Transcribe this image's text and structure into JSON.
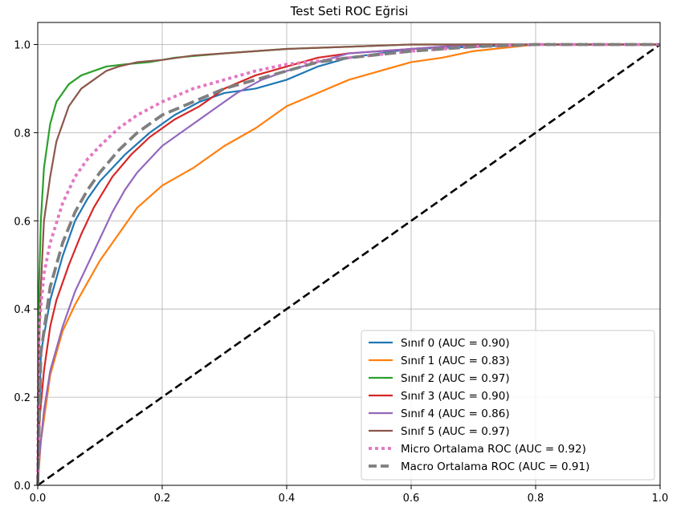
{
  "chart_data": {
    "type": "line",
    "title": "Test Seti ROC Eğrisi",
    "xlabel": "",
    "ylabel": "",
    "xlim": [
      0.0,
      1.0
    ],
    "ylim": [
      0.0,
      1.05
    ],
    "x_ticks": [
      0.0,
      0.2,
      0.4,
      0.6,
      0.8,
      1.0
    ],
    "x_tick_labels": [
      "0.0",
      "0.2",
      "0.4",
      "0.6",
      "0.8",
      "1.0"
    ],
    "y_ticks": [
      0.0,
      0.2,
      0.4,
      0.6,
      0.8,
      1.0
    ],
    "y_tick_labels": [
      "0.0",
      "0.2",
      "0.4",
      "0.6",
      "0.8",
      "1.0"
    ],
    "grid": true,
    "legend_position": "lower-right",
    "series": [
      {
        "name": "Sınıf 0 (AUC = 0.90)",
        "color": "#1f77b4",
        "style": "solid",
        "x": [
          0,
          0.005,
          0.02,
          0.04,
          0.06,
          0.08,
          0.1,
          0.14,
          0.18,
          0.22,
          0.26,
          0.3,
          0.35,
          0.4,
          0.45,
          0.5,
          0.55,
          0.6,
          0.7,
          0.8,
          0.9,
          1.0
        ],
        "y": [
          0,
          0.3,
          0.42,
          0.52,
          0.6,
          0.65,
          0.69,
          0.75,
          0.8,
          0.84,
          0.87,
          0.89,
          0.9,
          0.92,
          0.95,
          0.97,
          0.98,
          0.99,
          0.995,
          1.0,
          1.0,
          1.0
        ]
      },
      {
        "name": "Sınıf 1 (AUC = 0.83)",
        "color": "#ff7f0e",
        "style": "solid",
        "x": [
          0,
          0.005,
          0.02,
          0.04,
          0.06,
          0.08,
          0.1,
          0.13,
          0.16,
          0.2,
          0.25,
          0.3,
          0.35,
          0.4,
          0.45,
          0.5,
          0.55,
          0.6,
          0.65,
          0.7,
          0.8,
          0.9,
          1.0
        ],
        "y": [
          0,
          0.1,
          0.25,
          0.35,
          0.41,
          0.46,
          0.51,
          0.57,
          0.63,
          0.68,
          0.72,
          0.77,
          0.81,
          0.86,
          0.89,
          0.92,
          0.94,
          0.96,
          0.97,
          0.985,
          1.0,
          1.0,
          1.0
        ]
      },
      {
        "name": "Sınıf 2 (AUC = 0.97)",
        "color": "#2ca02c",
        "style": "solid",
        "x": [
          0,
          0.002,
          0.005,
          0.01,
          0.02,
          0.03,
          0.05,
          0.07,
          0.09,
          0.11,
          0.14,
          0.18,
          0.22,
          0.3,
          0.4,
          0.5,
          0.6,
          0.8,
          1.0
        ],
        "y": [
          0,
          0.45,
          0.6,
          0.72,
          0.82,
          0.87,
          0.91,
          0.93,
          0.94,
          0.95,
          0.955,
          0.96,
          0.97,
          0.98,
          0.99,
          0.995,
          1.0,
          1.0,
          1.0
        ]
      },
      {
        "name": "Sınıf 3 (AUC = 0.90)",
        "color": "#d62728",
        "style": "solid",
        "x": [
          0,
          0.003,
          0.01,
          0.02,
          0.03,
          0.05,
          0.07,
          0.09,
          0.12,
          0.15,
          0.18,
          0.22,
          0.26,
          0.3,
          0.35,
          0.4,
          0.45,
          0.5,
          0.6,
          0.7,
          0.8,
          1.0
        ],
        "y": [
          0,
          0.15,
          0.26,
          0.36,
          0.42,
          0.5,
          0.57,
          0.63,
          0.7,
          0.75,
          0.79,
          0.83,
          0.86,
          0.9,
          0.93,
          0.95,
          0.97,
          0.98,
          0.99,
          1.0,
          1.0,
          1.0
        ]
      },
      {
        "name": "Sınıf 4 (AUC = 0.86)",
        "color": "#9467bd",
        "style": "solid",
        "x": [
          0,
          0.003,
          0.01,
          0.02,
          0.04,
          0.06,
          0.08,
          0.1,
          0.12,
          0.14,
          0.16,
          0.18,
          0.2,
          0.24,
          0.28,
          0.32,
          0.36,
          0.4,
          0.45,
          0.5,
          0.6,
          0.7,
          0.8,
          1.0
        ],
        "y": [
          0,
          0.07,
          0.17,
          0.26,
          0.36,
          0.44,
          0.5,
          0.56,
          0.62,
          0.67,
          0.71,
          0.74,
          0.77,
          0.81,
          0.85,
          0.89,
          0.92,
          0.94,
          0.96,
          0.98,
          0.99,
          1.0,
          1.0,
          1.0
        ]
      },
      {
        "name": "Sınıf 5 (AUC = 0.97)",
        "color": "#8c564b",
        "style": "solid",
        "x": [
          0,
          0.002,
          0.005,
          0.01,
          0.02,
          0.03,
          0.05,
          0.07,
          0.09,
          0.11,
          0.13,
          0.16,
          0.2,
          0.25,
          0.3,
          0.4,
          0.5,
          0.6,
          0.8,
          1.0
        ],
        "y": [
          0,
          0.3,
          0.45,
          0.6,
          0.7,
          0.78,
          0.86,
          0.9,
          0.92,
          0.94,
          0.95,
          0.96,
          0.965,
          0.975,
          0.98,
          0.99,
          0.995,
          1.0,
          1.0,
          1.0
        ]
      },
      {
        "name": "Micro Ortalama ROC (AUC = 0.92)",
        "color": "#e377c2",
        "style": "dotted",
        "x": [
          0,
          0.002,
          0.01,
          0.02,
          0.04,
          0.06,
          0.08,
          0.1,
          0.13,
          0.16,
          0.2,
          0.25,
          0.3,
          0.35,
          0.4,
          0.5,
          0.6,
          0.7,
          0.8,
          1.0
        ],
        "y": [
          0,
          0.36,
          0.48,
          0.55,
          0.64,
          0.7,
          0.74,
          0.77,
          0.81,
          0.84,
          0.87,
          0.9,
          0.92,
          0.94,
          0.955,
          0.97,
          0.985,
          0.995,
          1.0,
          1.0
        ]
      },
      {
        "name": "Macro Ortalama ROC (AUC = 0.91)",
        "color": "#7f7f7f",
        "style": "dashed",
        "x": [
          0,
          0.005,
          0.02,
          0.04,
          0.06,
          0.08,
          0.1,
          0.13,
          0.16,
          0.2,
          0.25,
          0.3,
          0.35,
          0.4,
          0.45,
          0.5,
          0.6,
          0.7,
          0.8,
          1.0
        ],
        "y": [
          0,
          0.3,
          0.45,
          0.55,
          0.62,
          0.67,
          0.71,
          0.76,
          0.8,
          0.84,
          0.87,
          0.9,
          0.92,
          0.94,
          0.96,
          0.97,
          0.985,
          0.995,
          1.0,
          1.0
        ]
      }
    ],
    "reference_line": {
      "x": [
        0,
        1
      ],
      "y": [
        0,
        1
      ],
      "color": "#000000",
      "style": "dashed"
    }
  }
}
